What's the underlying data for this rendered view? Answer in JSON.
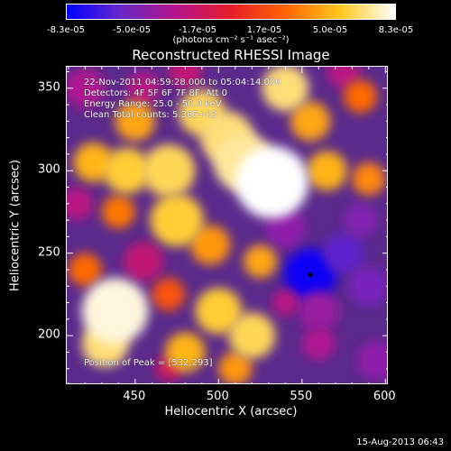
{
  "colorbar": {
    "ticks": [
      "-8.3e-05",
      "-5.0e-05",
      "-1.7e-05",
      "1.7e-05",
      "5.0e-05",
      "8.3e-05"
    ],
    "unit": "(photons cm⁻² s⁻¹ asec⁻²)",
    "range": [
      -8.3e-05,
      8.3e-05
    ],
    "colors": [
      "#0000ff",
      "#6a28c8",
      "#b4148c",
      "#e61e28",
      "#ff6400",
      "#ffc81e",
      "#ffffff"
    ]
  },
  "chart_data": {
    "type": "heatmap",
    "title": "Reconstructed RHESSI Image",
    "xlabel": "Heliocentric X (arcsec)",
    "ylabel": "Heliocentric Y (arcsec)",
    "xlim": [
      409,
      602
    ],
    "ylim": [
      170,
      363
    ],
    "xticks": [
      450,
      500,
      550,
      600
    ],
    "yticks": [
      200,
      250,
      300,
      350
    ],
    "peak": [
      532,
      293
    ],
    "annotations": [
      "22-Nov-2011 04:59:28.000 to 05:04:14.000",
      "Detectors: 4F 5F 6F 7F 8F, Att 0",
      "Energy Range: 25.0 - 50.0 keV",
      "Clean     Total counts: 5.36E+03",
      "Position of Peak = [532,293]"
    ],
    "blobs": [
      {
        "x": 532,
        "y": 293,
        "r": 22,
        "v": 1.0
      },
      {
        "x": 515,
        "y": 305,
        "r": 18,
        "v": 0.85
      },
      {
        "x": 505,
        "y": 320,
        "r": 16,
        "v": 0.8
      },
      {
        "x": 490,
        "y": 335,
        "r": 14,
        "v": 0.75
      },
      {
        "x": 470,
        "y": 300,
        "r": 16,
        "v": 0.75
      },
      {
        "x": 445,
        "y": 300,
        "r": 14,
        "v": 0.7
      },
      {
        "x": 425,
        "y": 305,
        "r": 12,
        "v": 0.6
      },
      {
        "x": 450,
        "y": 330,
        "r": 12,
        "v": 0.55
      },
      {
        "x": 475,
        "y": 270,
        "r": 16,
        "v": 0.7
      },
      {
        "x": 495,
        "y": 255,
        "r": 12,
        "v": 0.5
      },
      {
        "x": 440,
        "y": 275,
        "r": 10,
        "v": 0.4
      },
      {
        "x": 438,
        "y": 215,
        "r": 20,
        "v": 0.95
      },
      {
        "x": 432,
        "y": 195,
        "r": 14,
        "v": 0.8
      },
      {
        "x": 420,
        "y": 240,
        "r": 10,
        "v": 0.35
      },
      {
        "x": 540,
        "y": 350,
        "r": 14,
        "v": 0.8
      },
      {
        "x": 555,
        "y": 330,
        "r": 12,
        "v": 0.55
      },
      {
        "x": 585,
        "y": 345,
        "r": 10,
        "v": 0.35
      },
      {
        "x": 565,
        "y": 300,
        "r": 12,
        "v": 0.6
      },
      {
        "x": 590,
        "y": 295,
        "r": 10,
        "v": 0.45
      },
      {
        "x": 525,
        "y": 245,
        "r": 10,
        "v": 0.55
      },
      {
        "x": 500,
        "y": 215,
        "r": 14,
        "v": 0.7
      },
      {
        "x": 520,
        "y": 200,
        "r": 14,
        "v": 0.75
      },
      {
        "x": 480,
        "y": 190,
        "r": 12,
        "v": 0.6
      },
      {
        "x": 510,
        "y": 180,
        "r": 10,
        "v": 0.5
      },
      {
        "x": 470,
        "y": 225,
        "r": 10,
        "v": 0.25
      },
      {
        "x": 555,
        "y": 237,
        "r": 16,
        "v": -0.95
      },
      {
        "x": 575,
        "y": 250,
        "r": 12,
        "v": -0.7
      },
      {
        "x": 540,
        "y": 265,
        "r": 12,
        "v": -0.5
      },
      {
        "x": 560,
        "y": 215,
        "r": 12,
        "v": -0.45
      },
      {
        "x": 590,
        "y": 230,
        "r": 12,
        "v": -0.6
      },
      {
        "x": 585,
        "y": 270,
        "r": 10,
        "v": -0.55
      },
      {
        "x": 595,
        "y": 185,
        "r": 12,
        "v": -0.5
      },
      {
        "x": 560,
        "y": 195,
        "r": 10,
        "v": -0.35
      },
      {
        "x": 540,
        "y": 220,
        "r": 8,
        "v": -0.3
      },
      {
        "x": 420,
        "y": 350,
        "r": 12,
        "v": -0.35
      },
      {
        "x": 455,
        "y": 350,
        "r": 10,
        "v": -0.3
      },
      {
        "x": 480,
        "y": 360,
        "r": 10,
        "v": -0.25
      },
      {
        "x": 415,
        "y": 280,
        "r": 10,
        "v": -0.3
      },
      {
        "x": 455,
        "y": 245,
        "r": 12,
        "v": -0.25
      },
      {
        "x": 470,
        "y": 180,
        "r": 8,
        "v": -0.2
      },
      {
        "x": 575,
        "y": 360,
        "r": 10,
        "v": -0.3
      }
    ]
  },
  "timestamp": "15-Aug-2013 06:43"
}
